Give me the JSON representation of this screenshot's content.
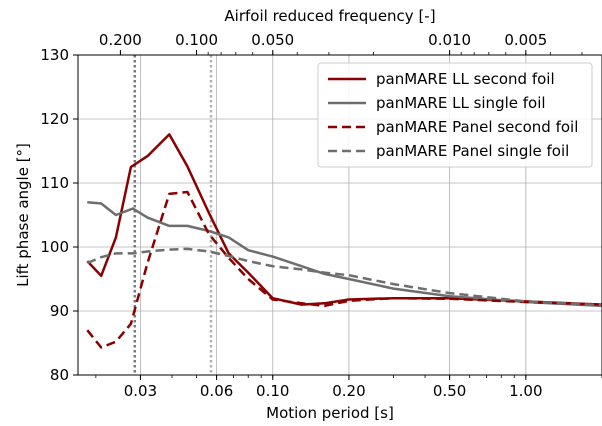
{
  "chart_data": {
    "type": "line",
    "xlabel": "Motion period [s]",
    "ylabel": "Lift phase angle [°]",
    "top_xlabel": "Airfoil reduced frequency [-]",
    "x_scale": "log",
    "xlim": [
      0.017,
      2.0
    ],
    "ylim": [
      80,
      130
    ],
    "grid": true,
    "legend_position": "top-right",
    "xticks": [
      {
        "value": 0.03,
        "label": "0.03"
      },
      {
        "value": 0.06,
        "label": "0.06"
      },
      {
        "value": 0.1,
        "label": "0.10"
      },
      {
        "value": 0.2,
        "label": "0.20"
      },
      {
        "value": 0.5,
        "label": "0.50"
      },
      {
        "value": 1.0,
        "label": "1.00"
      }
    ],
    "yticks": [
      80,
      90,
      100,
      110,
      120,
      130
    ],
    "top_xticks": [
      {
        "value": 0.2,
        "label": "0.200"
      },
      {
        "value": 0.1,
        "label": "0.100"
      },
      {
        "value": 0.05,
        "label": "0.050"
      },
      {
        "value": 0.01,
        "label": "0.010"
      },
      {
        "value": 0.005,
        "label": "0.005"
      }
    ],
    "top_axis_relation": "reduced_frequency = 0.005 / motion_period",
    "vlines": [
      {
        "x": 0.0285,
        "color": "#7a7a7a"
      },
      {
        "x": 0.057,
        "color": "#b3b3b3"
      }
    ],
    "series": [
      {
        "name": "panMARE LL second foil",
        "color": "#8b0000",
        "dash": "solid",
        "x": [
          0.0185,
          0.021,
          0.024,
          0.0275,
          0.032,
          0.039,
          0.046,
          0.056,
          0.067,
          0.08,
          0.1,
          0.13,
          0.16,
          0.2,
          0.3,
          0.5,
          1.0,
          2.0
        ],
        "y": [
          97.8,
          95.5,
          101.5,
          112.5,
          114.2,
          117.6,
          112.6,
          105.3,
          99.0,
          96.0,
          92.0,
          91.0,
          91.2,
          91.8,
          92.0,
          92.0,
          91.5,
          91.0
        ]
      },
      {
        "name": "panMARE LL single foil",
        "color": "#6e6e6e",
        "dash": "solid",
        "x": [
          0.0185,
          0.021,
          0.024,
          0.028,
          0.032,
          0.039,
          0.046,
          0.056,
          0.067,
          0.08,
          0.1,
          0.13,
          0.16,
          0.2,
          0.3,
          0.5,
          1.0,
          2.0
        ],
        "y": [
          107.0,
          106.8,
          105.0,
          106.0,
          104.6,
          103.3,
          103.3,
          102.5,
          101.5,
          99.5,
          98.5,
          97.0,
          95.8,
          95.0,
          93.5,
          92.3,
          91.4,
          90.8
        ]
      },
      {
        "name": "panMARE Panel second foil",
        "color": "#8b0000",
        "dash": "dashed",
        "x": [
          0.0185,
          0.021,
          0.024,
          0.0275,
          0.032,
          0.039,
          0.046,
          0.056,
          0.067,
          0.08,
          0.1,
          0.13,
          0.16,
          0.2,
          0.3,
          0.5,
          1.0,
          2.0
        ],
        "y": [
          87.0,
          84.3,
          85.2,
          88.0,
          97.5,
          108.3,
          108.6,
          102.0,
          98.3,
          95.0,
          91.8,
          91.2,
          90.8,
          91.6,
          92.0,
          91.9,
          91.4,
          91.0
        ]
      },
      {
        "name": "panMARE Panel single foil",
        "color": "#6e6e6e",
        "dash": "dashed",
        "x": [
          0.0185,
          0.021,
          0.024,
          0.028,
          0.032,
          0.039,
          0.046,
          0.056,
          0.067,
          0.08,
          0.1,
          0.13,
          0.16,
          0.2,
          0.3,
          0.5,
          1.0,
          2.0
        ],
        "y": [
          97.5,
          98.4,
          99.0,
          99.0,
          99.3,
          99.6,
          99.7,
          99.3,
          98.6,
          97.8,
          97.0,
          96.5,
          96.0,
          95.6,
          94.2,
          92.8,
          91.5,
          90.9
        ]
      }
    ]
  }
}
